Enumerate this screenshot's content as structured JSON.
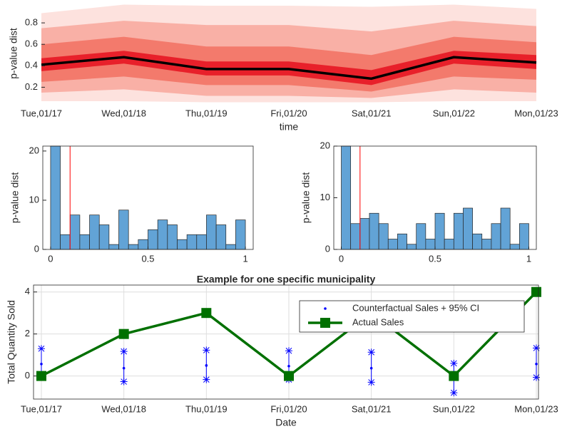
{
  "chart_data": [
    {
      "type": "fan",
      "categories": [
        "Tue,01/17",
        "Wed,01/18",
        "Thu,01/19",
        "Fri,01/20",
        "Sat,01/21",
        "Sun,01/22",
        "Mon,01/23"
      ],
      "x_label": "time",
      "y_label": "p-value dist",
      "ylim": [
        0.05,
        0.98
      ],
      "yticks": [
        0.2,
        0.4,
        0.6,
        0.8
      ],
      "bands": [
        {
          "color": "#fde2de",
          "lower": [
            0.07,
            0.07,
            0.06,
            0.06,
            0.06,
            0.07,
            0.07
          ],
          "upper": [
            0.89,
            0.97,
            0.96,
            0.96,
            0.95,
            0.97,
            0.93
          ]
        },
        {
          "color": "#f9b0a6",
          "lower": [
            0.15,
            0.18,
            0.12,
            0.12,
            0.1,
            0.18,
            0.15
          ],
          "upper": [
            0.75,
            0.82,
            0.78,
            0.78,
            0.72,
            0.82,
            0.77
          ]
        },
        {
          "color": "#f37a6c",
          "lower": [
            0.25,
            0.3,
            0.22,
            0.22,
            0.16,
            0.3,
            0.27
          ],
          "upper": [
            0.6,
            0.67,
            0.58,
            0.58,
            0.5,
            0.67,
            0.62
          ]
        },
        {
          "color": "#e8202a",
          "lower": [
            0.35,
            0.42,
            0.31,
            0.31,
            0.22,
            0.42,
            0.37
          ],
          "upper": [
            0.47,
            0.54,
            0.44,
            0.44,
            0.36,
            0.54,
            0.5
          ]
        }
      ],
      "series": [
        {
          "color": "#000000",
          "values": [
            0.41,
            0.48,
            0.37,
            0.37,
            0.28,
            0.48,
            0.43
          ]
        }
      ]
    },
    {
      "type": "histogram",
      "y_label": "p-value dist",
      "color": "#62a3d6",
      "bins": [
        0,
        0.05,
        0.1,
        0.15,
        0.2,
        0.25,
        0.3,
        0.35,
        0.4,
        0.45,
        0.5,
        0.55,
        0.6,
        0.65,
        0.7,
        0.75,
        0.8,
        0.85,
        0.9,
        0.95,
        1
      ],
      "counts": [
        21,
        3,
        7,
        3,
        7,
        5,
        1,
        8,
        1,
        2,
        4,
        6,
        5,
        2,
        3,
        3,
        7,
        5,
        1,
        6
      ],
      "xlim": [
        -0.04,
        1.04
      ],
      "xticks": [
        0,
        0.5,
        1
      ],
      "ylim": [
        0,
        21
      ],
      "yticks": [
        0,
        10,
        20
      ],
      "threshold": 0.1,
      "threshold_color": "#ff0000"
    },
    {
      "type": "histogram",
      "y_label": "p-value dist",
      "color": "#62a3d6",
      "bins": [
        0,
        0.05,
        0.1,
        0.15,
        0.2,
        0.25,
        0.3,
        0.35,
        0.4,
        0.45,
        0.5,
        0.55,
        0.6,
        0.65,
        0.7,
        0.75,
        0.8,
        0.85,
        0.9,
        0.95,
        1
      ],
      "counts": [
        20,
        5,
        6,
        7,
        5,
        2,
        3,
        1,
        5,
        2,
        7,
        2,
        7,
        8,
        3,
        2,
        5,
        8,
        1,
        5
      ],
      "xlim": [
        -0.04,
        1.04
      ],
      "xticks": [
        0,
        0.5,
        1
      ],
      "ylim": [
        0,
        20
      ],
      "yticks": [
        0,
        10,
        20
      ],
      "threshold": 0.1,
      "threshold_color": "#ff0000"
    },
    {
      "type": "line",
      "title": "Example for one specific municipality",
      "categories": [
        "Tue,01/17",
        "Wed,01/18",
        "Thu,01/19",
        "Fri,01/20",
        "Sat,01/21",
        "Sun,01/22",
        "Mon,01/23"
      ],
      "x_label": "Date",
      "y_label": "Total Quantity Sold",
      "ylim": [
        -1.1,
        4.33
      ],
      "yticks": [
        0,
        2,
        4
      ],
      "grid": true,
      "legend": "upper right",
      "series": [
        {
          "name": "Counterfactual Sales + 95% CI",
          "color": "#0000ff",
          "marker": "dot",
          "values": [
            0.57,
            0.37,
            0.5,
            0.47,
            0.37,
            -0.13,
            0.57
          ],
          "lower": [
            -0.03,
            -0.27,
            -0.17,
            -0.17,
            -0.3,
            -0.8,
            -0.07
          ],
          "upper": [
            1.3,
            1.17,
            1.23,
            1.2,
            1.13,
            0.6,
            1.33
          ]
        },
        {
          "name": "Actual Sales",
          "color": "#007000",
          "marker": "square",
          "values": [
            0,
            2,
            3,
            0,
            3,
            0,
            4
          ]
        }
      ]
    }
  ]
}
